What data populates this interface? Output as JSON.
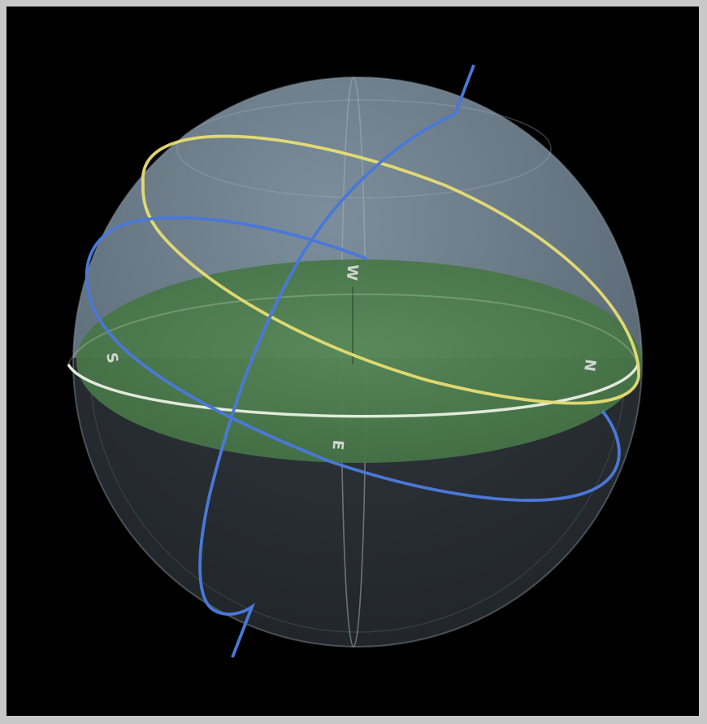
{
  "scene": {
    "colors": {
      "background": "#000000",
      "frame": "#c8c8c8",
      "sky_dome": "#6b7d8c",
      "lower_dome": "#2c3238",
      "ground_plane": "#4f8050",
      "horizon_ring": "#e2eadc",
      "meridian_lines": "#a3afba",
      "yellow_orbit": "#e7dd73",
      "blue_orbit": "#4a78d8",
      "compass_text": "#cfd6d0"
    },
    "compass": {
      "north": "N",
      "south": "S",
      "east": "E",
      "west": "W"
    }
  }
}
